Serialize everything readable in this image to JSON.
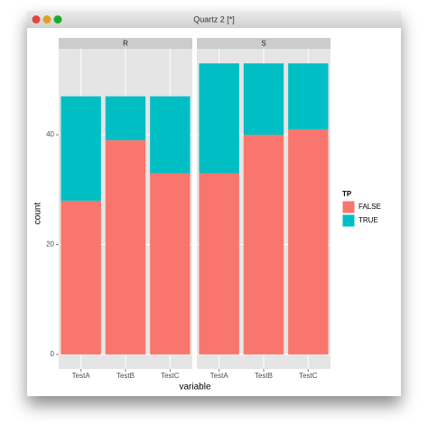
{
  "window": {
    "title": "Quartz 2 [*]"
  },
  "chart_data": {
    "type": "bar",
    "stacked": true,
    "x_label": "variable",
    "y_label": "count",
    "legend_title": "TP",
    "series": [
      {
        "name": "FALSE",
        "color": "#f8766d"
      },
      {
        "name": "TRUE",
        "color": "#00bfc4"
      }
    ],
    "ylim": [
      -2.65,
      55.65
    ],
    "yticks": [
      0,
      20,
      40
    ],
    "grid": true,
    "panels": [
      {
        "title": "R",
        "categories": [
          "TestA",
          "TestB",
          "TestC"
        ],
        "series": [
          {
            "values": [
              28,
              39,
              33
            ]
          },
          {
            "values": [
              19,
              8,
              14
            ]
          }
        ]
      },
      {
        "title": "S",
        "categories": [
          "TestA",
          "TestB",
          "TestC"
        ],
        "series": [
          {
            "values": [
              33,
              40,
              41
            ]
          },
          {
            "values": [
              20,
              13,
              12
            ]
          }
        ]
      }
    ]
  }
}
